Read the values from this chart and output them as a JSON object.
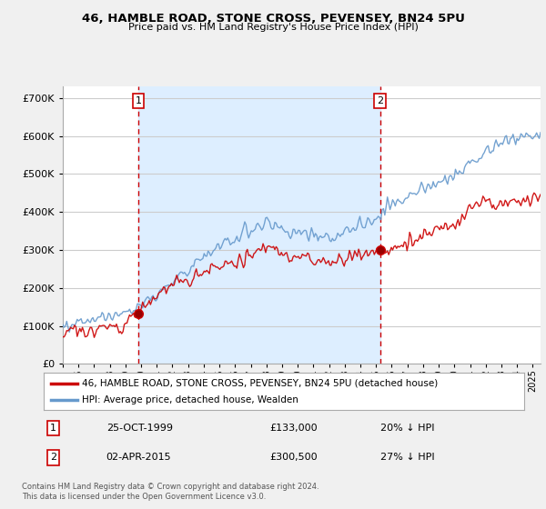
{
  "title": "46, HAMBLE ROAD, STONE CROSS, PEVENSEY, BN24 5PU",
  "subtitle": "Price paid vs. HM Land Registry's House Price Index (HPI)",
  "ylim": [
    0,
    730000
  ],
  "xlim_start": 1995.0,
  "xlim_end": 2025.5,
  "purchase1_x": 1999.82,
  "purchase1_y": 133000,
  "purchase1_label": "1",
  "purchase1_date": "25-OCT-1999",
  "purchase1_price": "£133,000",
  "purchase1_hpi": "20% ↓ HPI",
  "purchase2_x": 2015.25,
  "purchase2_y": 300500,
  "purchase2_label": "2",
  "purchase2_date": "02-APR-2015",
  "purchase2_price": "£300,500",
  "purchase2_hpi": "27% ↓ HPI",
  "legend_line1": "46, HAMBLE ROAD, STONE CROSS, PEVENSEY, BN24 5PU (detached house)",
  "legend_line2": "HPI: Average price, detached house, Wealden",
  "footer1": "Contains HM Land Registry data © Crown copyright and database right 2024.",
  "footer2": "This data is licensed under the Open Government Licence v3.0.",
  "line_color_red": "#cc0000",
  "line_color_blue": "#6699cc",
  "bg_color": "#f0f0f0",
  "plot_bg_color": "#ffffff",
  "shade_color": "#ddeeff",
  "grid_color": "#cccccc"
}
